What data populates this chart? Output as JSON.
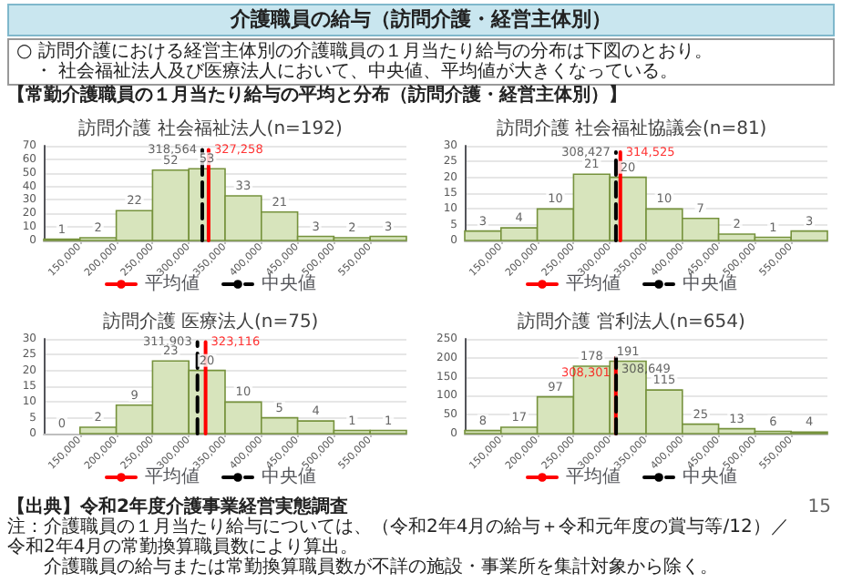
{
  "chart_data": [
    {
      "type": "histogram",
      "title": "訪問介護 社会福祉法人(n=192)",
      "bins": [
        100000,
        150000,
        200000,
        250000,
        300000,
        350000,
        400000,
        450000,
        500000,
        550000,
        600000
      ],
      "xlim": [
        100000,
        600000
      ],
      "xticks": [
        {
          "value": 150000,
          "label": "150,000"
        },
        {
          "value": 200000,
          "label": "200,000"
        },
        {
          "value": 250000,
          "label": "250,000"
        },
        {
          "value": 300000,
          "label": "300,000"
        },
        {
          "value": 350000,
          "label": "350,000"
        },
        {
          "value": 400000,
          "label": "400,000"
        },
        {
          "value": 450000,
          "label": "450,000"
        },
        {
          "value": 500000,
          "label": "500,000"
        },
        {
          "value": 550000,
          "label": "550,000"
        }
      ],
      "ylim": [
        0,
        70
      ],
      "yticks": [
        0,
        10,
        20,
        30,
        40,
        50,
        60,
        70
      ],
      "grid": "y",
      "legend": "bottom",
      "series": [
        {
          "type": "histogram",
          "color": "#d7e4bc",
          "values": [
            1,
            2,
            22,
            52,
            53,
            33,
            21,
            3,
            2,
            3
          ],
          "value_labels": [
            "1",
            "2",
            "22",
            "52",
            "53",
            "33",
            "21",
            "3",
            "2",
            "3"
          ]
        },
        {
          "type": "line",
          "name": "平均値",
          "color": "#ff0000",
          "line_style": "solid",
          "x": [
            327258,
            327258
          ],
          "values": [
            0,
            67
          ]
        },
        {
          "type": "line",
          "name": "中央値",
          "color": "#000000",
          "line_style": "dashed",
          "x": [
            318564,
            318564
          ],
          "values": [
            0,
            67
          ]
        }
      ],
      "annotations": [
        {
          "text": "327,258",
          "x": 327258,
          "y": 67
        },
        {
          "text": "318,564",
          "x": 318564,
          "y": 67
        },
        "介護職員の給与（訪問介護・経営主体別）",
        "○ 訪問介護における経営主体別の介護職員の１月当たり給与の分布は下図のとおり。",
        "・ 社会福祉法人及び医療法人において、中央値、平均値が大きくなっている。",
        "【常勤介護職員の１月当たり給与の平均と分布（訪問介護・経営主体別）】",
        "【出典】令和2年度介護事業経営実態調査",
        "注：介護職員の１月当たり給与については、（令和2年4月の給与＋令和元年度の賞与等/12）／令和2年4月の常勤換算職員数により算出。",
        "介護職員の給与または常勤換算職員数が不詳の施設・事業所を集計対象から除く。",
        "15"
      ]
    },
    {
      "type": "histogram",
      "title": "訪問介護 社会福祉協議会(n=81)",
      "bins": [
        100000,
        150000,
        200000,
        250000,
        300000,
        350000,
        400000,
        450000,
        500000,
        550000,
        600000
      ],
      "xlim": [
        100000,
        600000
      ],
      "xticks": [
        {
          "value": 150000,
          "label": "150,000"
        },
        {
          "value": 200000,
          "label": "200,000"
        },
        {
          "value": 250000,
          "label": "250,000"
        },
        {
          "value": 300000,
          "label": "300,000"
        },
        {
          "value": 350000,
          "label": "350,000"
        },
        {
          "value": 400000,
          "label": "400,000"
        },
        {
          "value": 450000,
          "label": "450,000"
        },
        {
          "value": 500000,
          "label": "500,000"
        },
        {
          "value": 550000,
          "label": "550,000"
        }
      ],
      "ylim": [
        0,
        30
      ],
      "yticks": [
        0,
        5,
        10,
        15,
        20,
        25,
        30
      ],
      "grid": "y",
      "legend": "bottom",
      "series": [
        {
          "type": "histogram",
          "color": "#d7e4bc",
          "values": [
            3,
            4,
            10,
            21,
            20,
            10,
            7,
            2,
            1,
            3
          ],
          "value_labels": [
            "3",
            "4",
            "10",
            "21",
            "20",
            "10",
            "7",
            "2",
            "1",
            "3"
          ]
        },
        {
          "type": "line",
          "name": "平均値",
          "color": "#ff0000",
          "line_style": "solid",
          "x": [
            314525,
            314525
          ],
          "values": [
            0,
            28
          ]
        },
        {
          "type": "line",
          "name": "中央値",
          "color": "#000000",
          "line_style": "dashed",
          "x": [
            308427,
            308427
          ],
          "values": [
            0,
            28
          ]
        }
      ],
      "annotations": [
        {
          "text": "314,525",
          "x": 314525,
          "y": 28
        },
        {
          "text": "308,427",
          "x": 308427,
          "y": 28
        }
      ]
    },
    {
      "type": "histogram",
      "title": "訪問介護 医療法人(n=75)",
      "bins": [
        100000,
        150000,
        200000,
        250000,
        300000,
        350000,
        400000,
        450000,
        500000,
        550000,
        600000
      ],
      "xlim": [
        100000,
        600000
      ],
      "xticks": [
        {
          "value": 150000,
          "label": "150,000"
        },
        {
          "value": 200000,
          "label": "200,000"
        },
        {
          "value": 250000,
          "label": "250,000"
        },
        {
          "value": 300000,
          "label": "300,000"
        },
        {
          "value": 350000,
          "label": "350,000"
        },
        {
          "value": 400000,
          "label": "400,000"
        },
        {
          "value": 450000,
          "label": "450,000"
        },
        {
          "value": 500000,
          "label": "500,000"
        },
        {
          "value": 550000,
          "label": "550,000"
        }
      ],
      "ylim": [
        0,
        30
      ],
      "yticks": [
        0,
        5,
        10,
        15,
        20,
        25,
        30
      ],
      "grid": "y",
      "legend": "bottom",
      "series": [
        {
          "type": "histogram",
          "color": "#d7e4bc",
          "values": [
            0,
            2,
            9,
            23,
            20,
            10,
            5,
            4,
            1,
            1
          ],
          "value_labels": [
            "0",
            "2",
            "9",
            "23",
            "20",
            "10",
            "5",
            "4",
            "1",
            "1"
          ]
        },
        {
          "type": "line",
          "name": "平均値",
          "color": "#ff0000",
          "line_style": "solid",
          "x": [
            323116,
            323116
          ],
          "values": [
            0,
            29
          ]
        },
        {
          "type": "line",
          "name": "中央値",
          "color": "#000000",
          "line_style": "dashed",
          "x": [
            311903,
            311903
          ],
          "values": [
            0,
            29
          ]
        }
      ],
      "annotations": [
        {
          "text": "323,116",
          "x": 323116,
          "y": 29
        },
        {
          "text": "311,903",
          "x": 311903,
          "y": 29
        }
      ]
    },
    {
      "type": "histogram",
      "title": "訪問介護 営利法人(n=654)",
      "bins": [
        100000,
        150000,
        200000,
        250000,
        300000,
        350000,
        400000,
        450000,
        500000,
        550000,
        600000
      ],
      "xlim": [
        100000,
        600000
      ],
      "xticks": [
        {
          "value": 150000,
          "label": "150,000"
        },
        {
          "value": 200000,
          "label": "200,000"
        },
        {
          "value": 250000,
          "label": "250,000"
        },
        {
          "value": 300000,
          "label": "300,000"
        },
        {
          "value": 350000,
          "label": "350,000"
        },
        {
          "value": 400000,
          "label": "400,000"
        },
        {
          "value": 450000,
          "label": "450,000"
        },
        {
          "value": 500000,
          "label": "500,000"
        },
        {
          "value": 550000,
          "label": "550,000"
        }
      ],
      "ylim": [
        0,
        250
      ],
      "yticks": [
        0,
        50,
        100,
        150,
        200,
        250
      ],
      "grid": "y",
      "legend": "bottom",
      "series": [
        {
          "type": "histogram",
          "color": "#d7e4bc",
          "values": [
            8,
            17,
            97,
            178,
            191,
            115,
            25,
            13,
            6,
            4
          ],
          "value_labels": [
            "8",
            "17",
            "97",
            "178",
            "191",
            "115",
            "25",
            "13",
            "6",
            "4"
          ]
        },
        {
          "type": "line",
          "name": "平均値",
          "color": "#ff0000",
          "line_style": "solid",
          "x": [
            308301,
            308301
          ],
          "values": [
            0,
            200
          ]
        },
        {
          "type": "line",
          "name": "中央値",
          "color": "#000000",
          "line_style": "dashed",
          "x": [
            308649,
            308649
          ],
          "values": [
            0,
            200
          ]
        }
      ],
      "annotations": [
        {
          "text": "308,301",
          "x": 308301,
          "y": 160
        },
        {
          "text": "308,649",
          "x": 308649,
          "y": 170
        }
      ]
    }
  ]
}
